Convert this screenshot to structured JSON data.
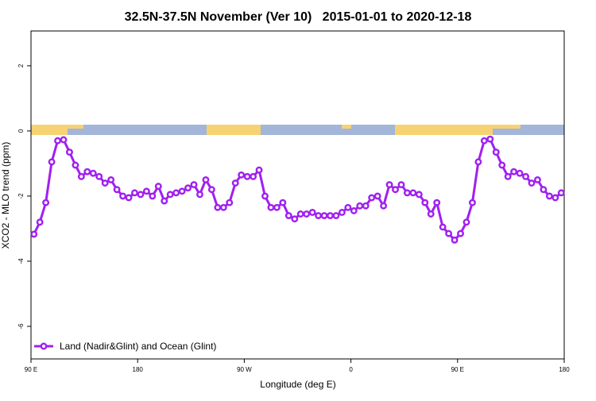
{
  "chart_data": {
    "type": "line",
    "title": "32.5N-37.5N November (Ver 10)   2015-01-01 to 2020-12-18",
    "xlabel": "Longitude (deg E)",
    "ylabel": "XCO2 - MLO trend (ppm)",
    "xlim": [
      90,
      540
    ],
    "ylim": [
      -7,
      3.07
    ],
    "xticks": [
      {
        "value": 90,
        "label": "90 E"
      },
      180,
      {
        "value": 270,
        "label": "90 W"
      },
      {
        "value": 360,
        "label": "0"
      },
      {
        "value": 450,
        "label": "90 E"
      },
      {
        "value": 540,
        "label": "180"
      }
    ],
    "yticks": [
      -6,
      -4,
      -2,
      0,
      2
    ],
    "legend": "bottomleft",
    "x": [
      92.5,
      97.5,
      102.5,
      107.5,
      112.5,
      117.5,
      122.5,
      127.5,
      132.5,
      137.5,
      142.5,
      147.5,
      152.5,
      157.5,
      162.5,
      167.5,
      172.5,
      177.5,
      182.5,
      187.5,
      192.5,
      197.5,
      202.5,
      207.5,
      212.5,
      217.5,
      222.5,
      227.5,
      232.5,
      237.5,
      242.5,
      247.5,
      252.5,
      257.5,
      262.5,
      267.5,
      272.5,
      277.5,
      282.5,
      287.5,
      292.5,
      297.5,
      302.5,
      307.5,
      312.5,
      317.5,
      322.5,
      327.5,
      332.5,
      337.5,
      342.5,
      347.5,
      352.5,
      357.5,
      362.5,
      367.5,
      372.5,
      377.5,
      382.5,
      387.5,
      392.5,
      397.5,
      402.5,
      407.5,
      412.5,
      417.5,
      422.5,
      427.5,
      432.5,
      437.5,
      442.5,
      447.5,
      452.5,
      457.5,
      462.5,
      467.5,
      472.5,
      477.5,
      482.5,
      487.5,
      492.5,
      497.5,
      502.5,
      507.5,
      512.5,
      517.5,
      522.5,
      527.5,
      532.5,
      537.5
    ],
    "series": [
      {
        "name": "Land (Nadir&Glint) and Ocean (Glint)",
        "color": "#a020f0",
        "values": [
          -3.17,
          -2.8,
          -2.2,
          -0.95,
          -0.3,
          -0.27,
          -0.65,
          -1.05,
          -1.4,
          -1.25,
          -1.3,
          -1.4,
          -1.6,
          -1.5,
          -1.8,
          -2.0,
          -2.05,
          -1.9,
          -1.95,
          -1.85,
          -2.0,
          -1.7,
          -2.15,
          -1.95,
          -1.9,
          -1.85,
          -1.75,
          -1.65,
          -1.95,
          -1.5,
          -1.8,
          -2.35,
          -2.35,
          -2.2,
          -1.6,
          -1.35,
          -1.4,
          -1.4,
          -1.2,
          -2.0,
          -2.35,
          -2.35,
          -2.2,
          -2.6,
          -2.7,
          -2.55,
          -2.55,
          -2.5,
          -2.6,
          -2.6,
          -2.6,
          -2.6,
          -2.5,
          -2.35,
          -2.45,
          -2.3,
          -2.3,
          -2.05,
          -2.0,
          -2.3,
          -1.65,
          -1.8,
          -1.65,
          -1.9,
          -1.9,
          -1.95,
          -2.2,
          -2.55,
          -2.2,
          -2.95,
          -3.15,
          -3.35,
          -3.15,
          -2.8,
          -2.2,
          -0.95,
          -0.3,
          -0.25,
          -0.65,
          -1.05,
          -1.4,
          -1.25,
          -1.3,
          -1.4,
          -1.6,
          -1.5,
          -1.8,
          -2.0,
          -2.05,
          -1.9
        ]
      }
    ]
  }
}
